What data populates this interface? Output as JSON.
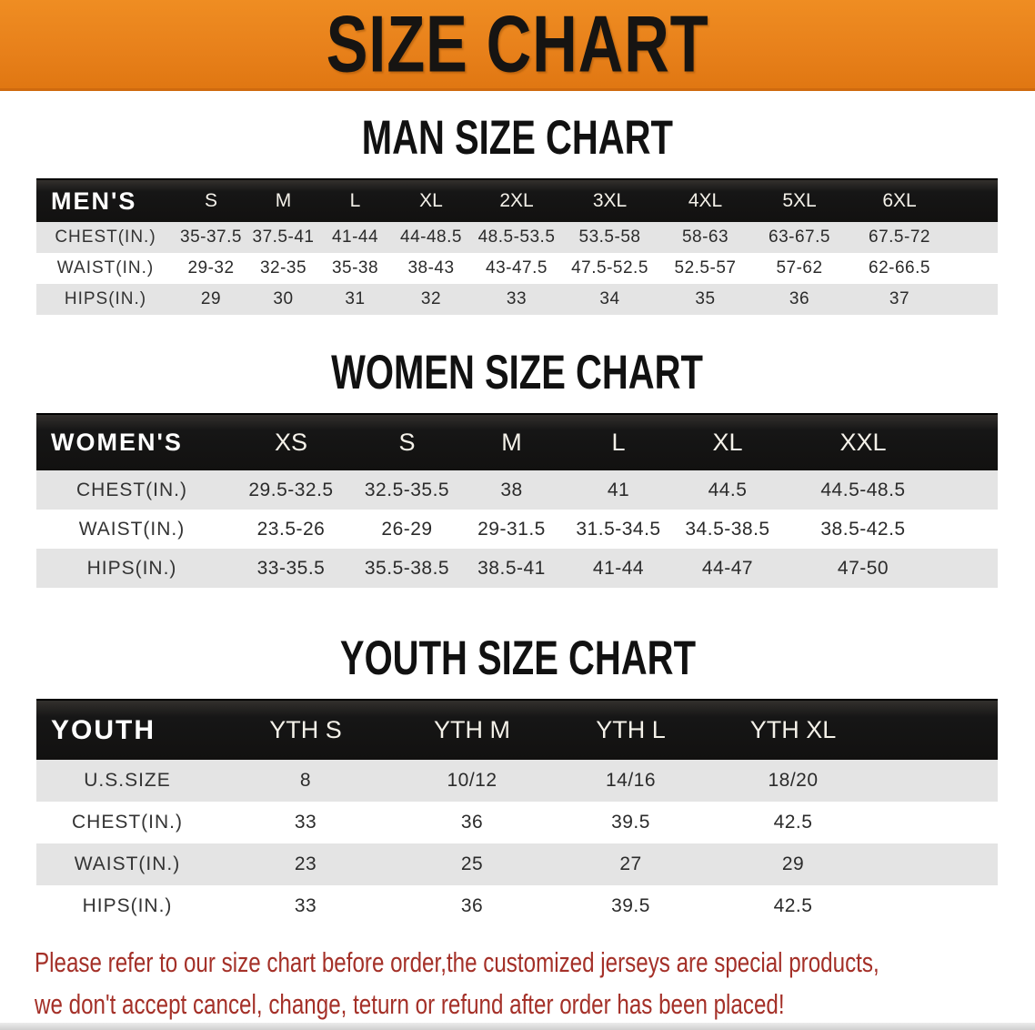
{
  "banner": {
    "title": "SIZE CHART",
    "bg_color": "#e8811b",
    "text_color": "#161412"
  },
  "colors": {
    "accent_orange": "#e8811b",
    "table_header_black": "#161616",
    "row_stripe_gray": "#e4e4e4",
    "footnote_red": "#a43028"
  },
  "sections": [
    {
      "id": "men",
      "title": "MAN SIZE CHART",
      "table": {
        "header_label": "MEN'S",
        "sizes": [
          "S",
          "M",
          "L",
          "XL",
          "2XL",
          "3XL",
          "4XL",
          "5XL",
          "6XL"
        ],
        "rows": [
          {
            "label": "CHEST(IN.)",
            "values": [
              "35-37.5",
              "37.5-41",
              "41-44",
              "44-48.5",
              "48.5-53.5",
              "53.5-58",
              "58-63",
              "63-67.5",
              "67.5-72"
            ]
          },
          {
            "label": "WAIST(IN.)",
            "values": [
              "29-32",
              "32-35",
              "35-38",
              "38-43",
              "43-47.5",
              "47.5-52.5",
              "52.5-57",
              "57-62",
              "62-66.5"
            ]
          },
          {
            "label": "HIPS(IN.)",
            "values": [
              "29",
              "30",
              "31",
              "32",
              "33",
              "34",
              "35",
              "36",
              "37"
            ]
          }
        ]
      }
    },
    {
      "id": "women",
      "title": "WOMEN SIZE CHART",
      "table": {
        "header_label": "WOMEN'S",
        "sizes": [
          "XS",
          "S",
          "M",
          "L",
          "XL",
          "XXL"
        ],
        "rows": [
          {
            "label": "CHEST(IN.)",
            "values": [
              "29.5-32.5",
              "32.5-35.5",
              "38",
              "41",
              "44.5",
              "44.5-48.5"
            ]
          },
          {
            "label": "WAIST(IN.)",
            "values": [
              "23.5-26",
              "26-29",
              "29-31.5",
              "31.5-34.5",
              "34.5-38.5",
              "38.5-42.5"
            ]
          },
          {
            "label": "HIPS(IN.)",
            "values": [
              "33-35.5",
              "35.5-38.5",
              "38.5-41",
              "41-44",
              "44-47",
              "47-50"
            ]
          }
        ]
      }
    },
    {
      "id": "youth",
      "title": "YOUTH SIZE CHART",
      "table": {
        "header_label": "YOUTH",
        "sizes": [
          "YTH S",
          "YTH M",
          "YTH L",
          "YTH XL"
        ],
        "rows": [
          {
            "label": "U.S.SIZE",
            "values": [
              "8",
              "10/12",
              "14/16",
              "18/20"
            ]
          },
          {
            "label": "CHEST(IN.)",
            "values": [
              "33",
              "36",
              "39.5",
              "42.5"
            ]
          },
          {
            "label": "WAIST(IN.)",
            "values": [
              "23",
              "25",
              "27",
              "29"
            ]
          },
          {
            "label": "HIPS(IN.)",
            "values": [
              "33",
              "36",
              "39.5",
              "42.5"
            ]
          }
        ]
      }
    }
  ],
  "footnote": {
    "lines": [
      "Please refer to our size chart before order,the customized jerseys are special products,",
      "we don't accept cancel, change, teturn or refund after order has been placed!"
    ]
  }
}
